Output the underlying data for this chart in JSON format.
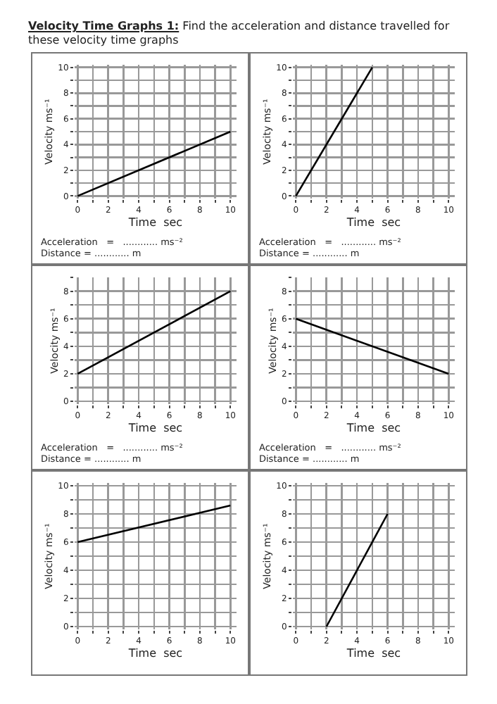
{
  "chart_data": [
    {
      "type": "line",
      "title": "Velocity Time Graphs 1:",
      "subtitle": "Find the acceleration and distance travelled for these velocity time graphs",
      "xlabel": "Time  sec",
      "ylabel": "Velocity ms⁻¹",
      "x": [
        0,
        10
      ],
      "values": [
        0,
        5
      ],
      "color": "#000000",
      "xlim": [
        -0.2,
        10.4
      ],
      "ylim": [
        -0.2,
        10.2
      ],
      "xticks": [
        0,
        {
          "value": 1,
          "label": null
        },
        2,
        {
          "value": 3,
          "label": null
        },
        4,
        {
          "value": 5,
          "label": null
        },
        6,
        {
          "value": 7,
          "label": null
        },
        8,
        {
          "value": 9,
          "label": null
        },
        10
      ],
      "yticks": [
        0,
        {
          "value": 1,
          "label": null
        },
        2,
        {
          "value": 3,
          "label": null
        },
        4,
        {
          "value": 5,
          "label": null
        },
        6,
        {
          "value": 7,
          "label": null
        },
        8,
        {
          "value": 9,
          "label": null
        },
        10
      ],
      "grid": true,
      "annotations": [
        "Acceleration   =   ............ ms⁻²          Distance = ............ m"
      ]
    },
    {
      "type": "line",
      "xlabel": "Time  sec",
      "ylabel": "Velocity ms⁻¹",
      "x": [
        0,
        5
      ],
      "values": [
        0,
        10
      ],
      "color": "#000000",
      "xlim": [
        -0.2,
        10.4
      ],
      "ylim": [
        -0.2,
        10.2
      ],
      "xticks": [
        0,
        {
          "value": 1,
          "label": null
        },
        2,
        {
          "value": 3,
          "label": null
        },
        4,
        {
          "value": 5,
          "label": null
        },
        6,
        {
          "value": 7,
          "label": null
        },
        8,
        {
          "value": 9,
          "label": null
        },
        10
      ],
      "yticks": [
        0,
        {
          "value": 1,
          "label": null
        },
        2,
        {
          "value": 3,
          "label": null
        },
        4,
        {
          "value": 5,
          "label": null
        },
        6,
        {
          "value": 7,
          "label": null
        },
        8,
        {
          "value": 9,
          "label": null
        },
        10
      ],
      "grid": true,
      "annotations": [
        "Acceleration   =   ............ ms⁻²          Distance = ............ m"
      ]
    },
    {
      "type": "line",
      "xlabel": "Time  sec",
      "ylabel": "Velocity ms⁻¹",
      "x": [
        0,
        10
      ],
      "values": [
        2,
        8
      ],
      "color": "#000000",
      "xlim": [
        -0.2,
        10.4
      ],
      "ylim": [
        -0.2,
        9
      ],
      "xticks": [
        0,
        {
          "value": 1,
          "label": null
        },
        2,
        {
          "value": 3,
          "label": null
        },
        4,
        {
          "value": 5,
          "label": null
        },
        6,
        {
          "value": 7,
          "label": null
        },
        8,
        {
          "value": 9,
          "label": null
        },
        10
      ],
      "yticks": [
        0,
        {
          "value": 1,
          "label": null
        },
        2,
        {
          "value": 3,
          "label": null
        },
        4,
        {
          "value": 5,
          "label": null
        },
        6,
        {
          "value": 7,
          "label": null
        },
        8,
        {
          "value": 9,
          "label": null
        }
      ],
      "grid": true,
      "annotations": [
        "Acceleration   =   ............ ms⁻²          Distance = ............ m"
      ]
    },
    {
      "type": "line",
      "xlabel": "Time  sec",
      "ylabel": "Velocity ms⁻¹",
      "x": [
        0,
        10
      ],
      "values": [
        6,
        2
      ],
      "color": "#000000",
      "xlim": [
        -0.2,
        10.4
      ],
      "ylim": [
        -0.2,
        9
      ],
      "xticks": [
        0,
        {
          "value": 1,
          "label": null
        },
        2,
        {
          "value": 3,
          "label": null
        },
        4,
        {
          "value": 5,
          "label": null
        },
        6,
        {
          "value": 7,
          "label": null
        },
        8,
        {
          "value": 9,
          "label": null
        },
        10
      ],
      "yticks": [
        0,
        {
          "value": 1,
          "label": null
        },
        2,
        {
          "value": 3,
          "label": null
        },
        4,
        {
          "value": 5,
          "label": null
        },
        6,
        {
          "value": 7,
          "label": null
        },
        8,
        {
          "value": 9,
          "label": null
        }
      ],
      "grid": true,
      "annotations": [
        "Acceleration   =   ............ ms⁻²          Distance = ............ m"
      ]
    },
    {
      "type": "line",
      "xlabel": "Time  sec",
      "ylabel": "Velocity ms⁻¹",
      "x": [
        0,
        10
      ],
      "values": [
        6,
        8.6
      ],
      "color": "#000000",
      "xlim": [
        -0.2,
        10.4
      ],
      "ylim": [
        -0.2,
        10.2
      ],
      "xticks": [
        0,
        {
          "value": 1,
          "label": null
        },
        2,
        {
          "value": 3,
          "label": null
        },
        4,
        {
          "value": 5,
          "label": null
        },
        6,
        {
          "value": 7,
          "label": null
        },
        8,
        {
          "value": 9,
          "label": null
        },
        10
      ],
      "yticks": [
        0,
        {
          "value": 1,
          "label": null
        },
        2,
        {
          "value": 3,
          "label": null
        },
        4,
        {
          "value": 5,
          "label": null
        },
        6,
        {
          "value": 7,
          "label": null
        },
        8,
        {
          "value": 9,
          "label": null
        },
        10
      ],
      "grid": true
    },
    {
      "type": "line",
      "xlabel": "Time  sec",
      "ylabel": "Velocity ms⁻¹",
      "x": [
        2,
        6
      ],
      "values": [
        0,
        8
      ],
      "color": "#000000",
      "xlim": [
        -0.2,
        10.4
      ],
      "ylim": [
        -0.2,
        10.2
      ],
      "xticks": [
        0,
        {
          "value": 1,
          "label": null
        },
        2,
        {
          "value": 3,
          "label": null
        },
        4,
        {
          "value": 5,
          "label": null
        },
        6,
        {
          "value": 7,
          "label": null
        },
        8,
        {
          "value": 9,
          "label": null
        },
        10
      ],
      "yticks": [
        0,
        {
          "value": 1,
          "label": null
        },
        2,
        {
          "value": 3,
          "label": null
        },
        4,
        {
          "value": 5,
          "label": null
        },
        6,
        {
          "value": 7,
          "label": null
        },
        8,
        {
          "value": 9,
          "label": null
        },
        10
      ],
      "grid": true
    }
  ]
}
